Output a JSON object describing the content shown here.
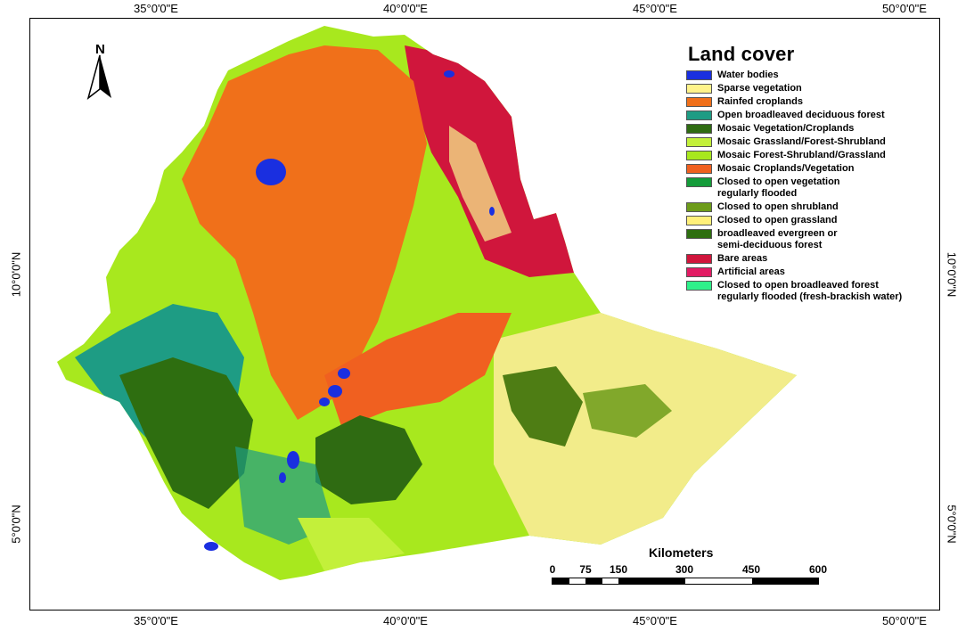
{
  "coordinates": {
    "longitude_labels": [
      "35°0'0\"E",
      "40°0'0\"E",
      "45°0'0\"E",
      "50°0'0\"E"
    ],
    "latitude_labels": [
      "10°0'0\"N",
      "5°0'0\"N"
    ]
  },
  "north_arrow": {
    "label": "N",
    "icon": "north-arrow-icon"
  },
  "legend": {
    "title": "Land cover",
    "items": [
      {
        "label": "Water bodies",
        "color": "#1a2fe0"
      },
      {
        "label": "Sparse vegetation",
        "color": "#fff38a"
      },
      {
        "label": "Rainfed croplands",
        "color": "#f0701a"
      },
      {
        "label": "Open broadleaved deciduous forest",
        "color": "#1e9c84"
      },
      {
        "label": "Mosaic Vegetation/Croplands",
        "color": "#2f6b12"
      },
      {
        "label": "Mosaic Grassland/Forest-Shrubland",
        "color": "#c3f03a"
      },
      {
        "label": "Mosaic Forest-Shrubland/Grassland",
        "color": "#a8e81e"
      },
      {
        "label": "Mosaic Croplands/Vegetation",
        "color": "#f06020"
      },
      {
        "label": "Closed to open vegetation\nregularly flooded",
        "color": "#149c3a"
      },
      {
        "label": "Closed to open shrubland",
        "color": "#6d9c1a"
      },
      {
        "label": "Closed to open grassland",
        "color": "#fff07a"
      },
      {
        "label": "broadleaved evergreen or\nsemi-deciduous forest",
        "color": "#2e6e10"
      },
      {
        "label": "Bare areas",
        "color": "#d0163c"
      },
      {
        "label": "Artificial areas",
        "color": "#e21c64"
      },
      {
        "label": "Closed to open broadleaved forest\nregularly flooded (fresh-brackish water)",
        "color": "#2ef08a"
      }
    ]
  },
  "scale": {
    "title": "Kilometers",
    "labels": [
      "0",
      "75",
      "150",
      "300",
      "450",
      "600"
    ]
  }
}
